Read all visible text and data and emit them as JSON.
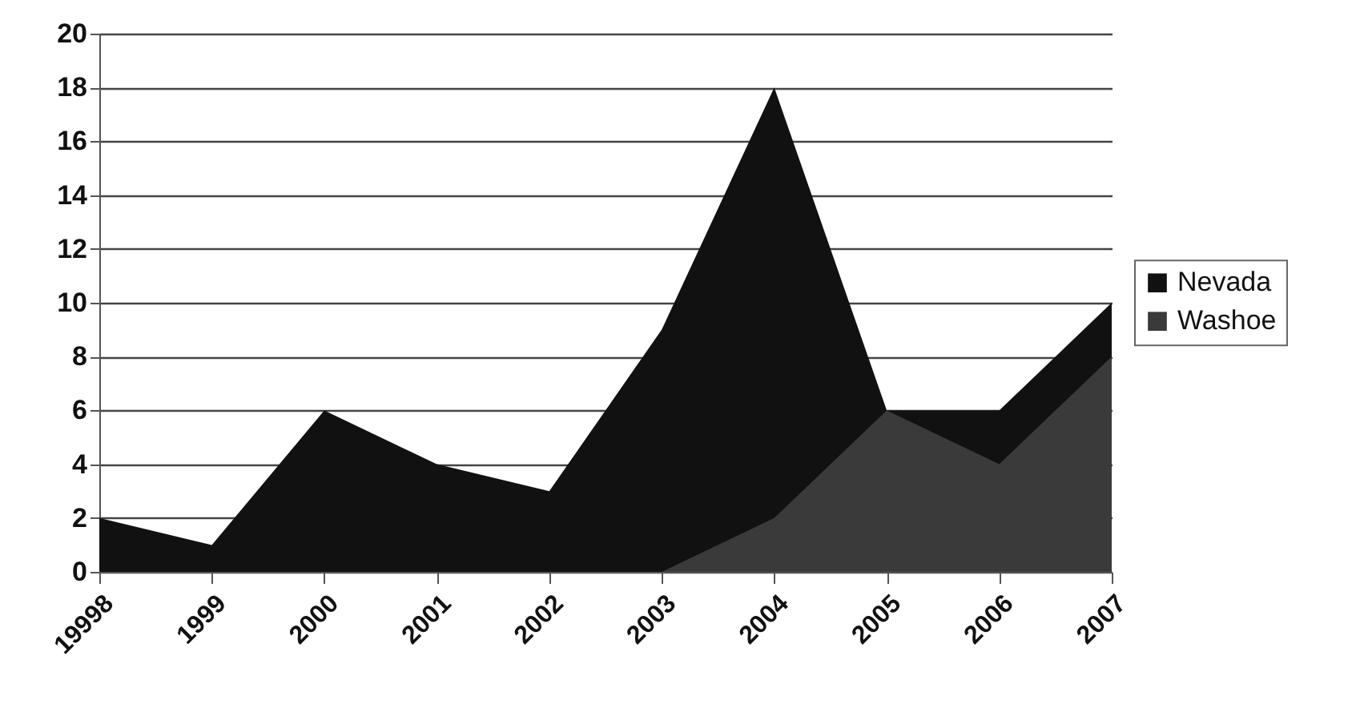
{
  "chart_data": {
    "type": "area",
    "categories": [
      "19998",
      "1999",
      "2000",
      "2001",
      "2002",
      "2003",
      "2004",
      "2005",
      "2006",
      "2007"
    ],
    "series": [
      {
        "name": "Nevada",
        "color": "#111111",
        "values": [
          2,
          1,
          6,
          4,
          3,
          9,
          18,
          6,
          6,
          10
        ]
      },
      {
        "name": "Washoe",
        "color": "#3a3a3a",
        "values": [
          0,
          0,
          0,
          0,
          0,
          0,
          2,
          6,
          4,
          8
        ]
      }
    ],
    "ylim": [
      0,
      20
    ],
    "yticks": [
      0,
      2,
      4,
      6,
      8,
      10,
      12,
      14,
      16,
      18,
      20
    ],
    "grid": "y",
    "legend": "right"
  }
}
